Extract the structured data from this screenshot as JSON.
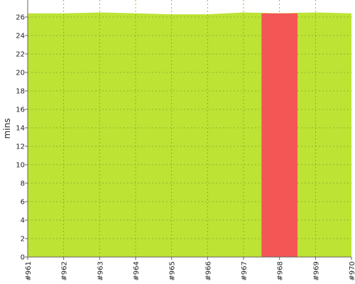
{
  "chart_data": {
    "type": "area",
    "ylabel": "mins",
    "xlabel": "",
    "title": "",
    "ylim": [
      0,
      28
    ],
    "y_ticks": [
      0,
      2,
      4,
      6,
      8,
      10,
      12,
      14,
      16,
      18,
      20,
      22,
      24,
      26
    ],
    "y_tick_labels": [
      "0",
      "2",
      "4",
      "6",
      "8",
      "10",
      "12",
      "14",
      "16",
      "18",
      "20",
      "22",
      "24",
      "26"
    ],
    "categories": [
      "#961",
      "#962",
      "#963",
      "#964",
      "#965",
      "#966",
      "#967",
      "#968",
      "#969",
      "#970"
    ],
    "series": [
      {
        "values": [
          26.4,
          26.4,
          26.5,
          26.4,
          26.3,
          26.3,
          26.5,
          26.4,
          26.5,
          26.4
        ]
      }
    ],
    "highlight": {
      "category": "#968",
      "color": "#f45555"
    },
    "area_color": "#bde335",
    "grid": true,
    "legend": "none"
  }
}
